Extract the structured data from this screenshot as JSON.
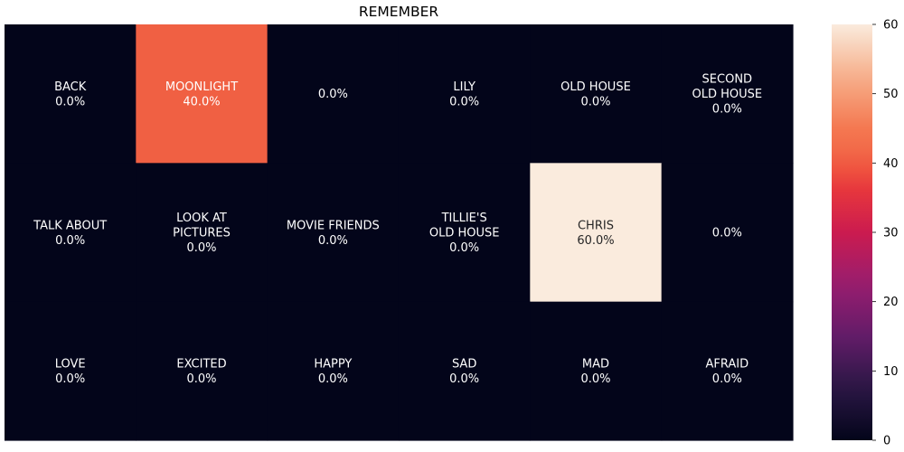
{
  "chart_data": {
    "type": "heatmap",
    "title": "REMEMBER",
    "rows": 3,
    "cols": 6,
    "cells": [
      [
        {
          "label": [
            "BACK"
          ],
          "value": 0,
          "value_text": "0.0%"
        },
        {
          "label": [
            "MOONLIGHT"
          ],
          "value": 40,
          "value_text": "40.0%"
        },
        {
          "label": [],
          "value": 0,
          "value_text": "0.0%"
        },
        {
          "label": [
            "LILY"
          ],
          "value": 0,
          "value_text": "0.0%"
        },
        {
          "label": [
            "OLD HOUSE"
          ],
          "value": 0,
          "value_text": "0.0%"
        },
        {
          "label": [
            "SECOND",
            "OLD HOUSE"
          ],
          "value": 0,
          "value_text": "0.0%"
        }
      ],
      [
        {
          "label": [
            "TALK ABOUT"
          ],
          "value": 0,
          "value_text": "0.0%"
        },
        {
          "label": [
            "LOOK AT",
            "PICTURES"
          ],
          "value": 0,
          "value_text": "0.0%"
        },
        {
          "label": [
            "MOVIE FRIENDS"
          ],
          "value": 0,
          "value_text": "0.0%"
        },
        {
          "label": [
            "TILLIE'S",
            "OLD HOUSE"
          ],
          "value": 0,
          "value_text": "0.0%"
        },
        {
          "label": [
            "CHRIS"
          ],
          "value": 60,
          "value_text": "60.0%"
        },
        {
          "label": [],
          "value": 0,
          "value_text": "0.0%"
        }
      ],
      [
        {
          "label": [
            "LOVE"
          ],
          "value": 0,
          "value_text": "0.0%"
        },
        {
          "label": [
            "EXCITED"
          ],
          "value": 0,
          "value_text": "0.0%"
        },
        {
          "label": [
            "HAPPY"
          ],
          "value": 0,
          "value_text": "0.0%"
        },
        {
          "label": [
            "SAD"
          ],
          "value": 0,
          "value_text": "0.0%"
        },
        {
          "label": [
            "MAD"
          ],
          "value": 0,
          "value_text": "0.0%"
        },
        {
          "label": [
            "AFRAID"
          ],
          "value": 0,
          "value_text": "0.0%"
        }
      ]
    ],
    "colorbar": {
      "vmin": 0,
      "vmax": 60,
      "ticks": [
        0,
        10,
        20,
        30,
        40,
        50,
        60
      ],
      "colormap": "rocket"
    },
    "grid": false,
    "legend": "colorbar-right"
  }
}
